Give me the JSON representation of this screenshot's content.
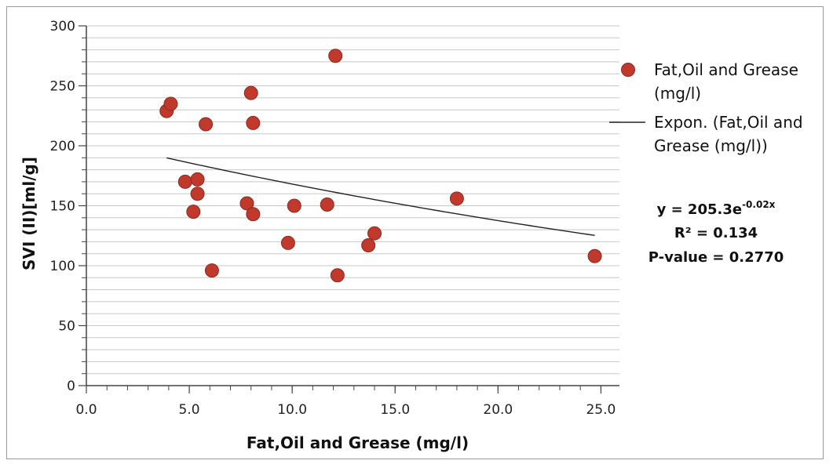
{
  "chart_data": {
    "type": "scatter",
    "xlabel": "Fat,Oil and Grease (mg/l)",
    "ylabel": "SVI (II)[ml/g]",
    "xlim": [
      0,
      25.9
    ],
    "ylim": [
      0,
      300
    ],
    "x_ticks": [
      0,
      5,
      10,
      15,
      20,
      25
    ],
    "x_tick_labels": [
      "0.0",
      "5.0",
      "10.0",
      "15.0",
      "20.0",
      "25.0"
    ],
    "x_minor_step": 1,
    "y_ticks": [
      0,
      50,
      100,
      150,
      200,
      250,
      300
    ],
    "y_tick_labels": [
      "0",
      "50",
      "100",
      "150",
      "200",
      "250",
      "300"
    ],
    "y_minor_step": 10,
    "grid": true,
    "series": [
      {
        "name": "Fat,Oil and Grease\n(mg/l)",
        "color": "#c0392b",
        "points": [
          {
            "x": 3.9,
            "y": 229
          },
          {
            "x": 4.1,
            "y": 235
          },
          {
            "x": 4.8,
            "y": 170
          },
          {
            "x": 5.2,
            "y": 145
          },
          {
            "x": 5.4,
            "y": 172
          },
          {
            "x": 5.4,
            "y": 160
          },
          {
            "x": 5.8,
            "y": 218
          },
          {
            "x": 6.1,
            "y": 96
          },
          {
            "x": 7.8,
            "y": 152
          },
          {
            "x": 8.0,
            "y": 244
          },
          {
            "x": 8.1,
            "y": 219
          },
          {
            "x": 8.1,
            "y": 143
          },
          {
            "x": 9.8,
            "y": 119
          },
          {
            "x": 10.1,
            "y": 150
          },
          {
            "x": 11.7,
            "y": 151
          },
          {
            "x": 12.1,
            "y": 275
          },
          {
            "x": 12.2,
            "y": 92
          },
          {
            "x": 13.7,
            "y": 117
          },
          {
            "x": 14.0,
            "y": 127
          },
          {
            "x": 18.0,
            "y": 156
          },
          {
            "x": 24.7,
            "y": 108
          }
        ]
      }
    ],
    "trendline": {
      "name": "Expon. (Fat,Oil and\nGrease (mg/l))",
      "type": "exponential",
      "a": 205.3,
      "b": -0.02,
      "x_range": [
        3.9,
        24.7
      ],
      "color": "#222222"
    },
    "annotations": {
      "equation_base": "y = 205.3e",
      "equation_exp": "-0.02x",
      "r2": "R² = 0.134",
      "pvalue": "P-value = 0.2770"
    },
    "legend_position": "right"
  }
}
